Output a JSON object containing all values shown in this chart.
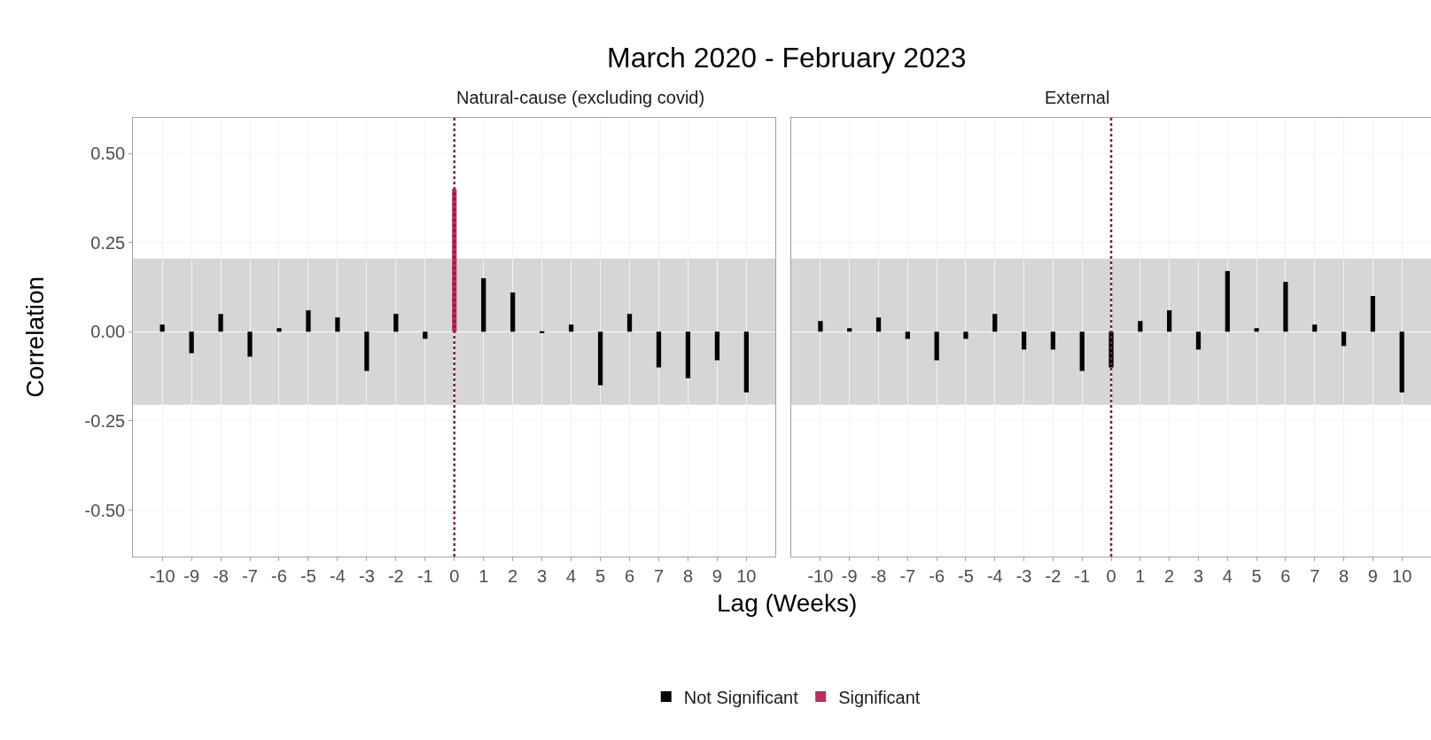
{
  "chart_data": [
    {
      "type": "bar",
      "title": "March 2020 - February 2023",
      "subtitle": "Natural-cause (excluding covid)",
      "xlabel": "Lag (Weeks)",
      "ylabel": "Correlation",
      "x": [
        -10,
        -9,
        -8,
        -7,
        -6,
        -5,
        -4,
        -3,
        -2,
        -1,
        0,
        1,
        2,
        3,
        4,
        5,
        6,
        7,
        8,
        9,
        10
      ],
      "series": [
        {
          "name": "Not Significant",
          "color": "#000000",
          "values": [
            0.02,
            -0.06,
            0.05,
            -0.07,
            0.01,
            0.06,
            0.04,
            -0.11,
            0.05,
            -0.02,
            null,
            0.15,
            0.11,
            -0.004,
            0.02,
            -0.15,
            0.05,
            -0.1,
            -0.13,
            -0.08,
            -0.17
          ]
        },
        {
          "name": "Significant",
          "color": "#b5305a",
          "values": [
            null,
            null,
            null,
            null,
            null,
            null,
            null,
            null,
            null,
            null,
            0.4,
            null,
            null,
            null,
            null,
            null,
            null,
            null,
            null,
            null,
            null
          ]
        }
      ],
      "xlim": [
        -11,
        11
      ],
      "xticks": [
        -10,
        -9,
        -8,
        -7,
        -6,
        -5,
        -4,
        -3,
        -2,
        -1,
        0,
        1,
        2,
        3,
        4,
        5,
        6,
        7,
        8,
        9,
        10
      ],
      "ylim": [
        -0.63,
        0.6
      ],
      "yticks": [
        {
          "value": -0.5,
          "label": "-0.50"
        },
        {
          "value": -0.25,
          "label": "-0.25"
        },
        {
          "value": 0,
          "label": "0.00"
        },
        {
          "value": 0.25,
          "label": "0.25"
        },
        {
          "value": 0.5,
          "label": "0.50"
        }
      ],
      "ref_lines": [
        {
          "axis": "x",
          "value": 0,
          "color": "#8b1a2b",
          "line_style": "dotted"
        }
      ],
      "bands": [
        {
          "axis": "y",
          "from": -0.205,
          "to": 0.205,
          "color": "#d6d6d6"
        }
      ],
      "grid": true,
      "legend": "bottom"
    },
    {
      "type": "bar",
      "subtitle": "External",
      "x": [
        -10,
        -9,
        -8,
        -7,
        -6,
        -5,
        -4,
        -3,
        -2,
        -1,
        0,
        1,
        2,
        3,
        4,
        5,
        6,
        7,
        8,
        9,
        10
      ],
      "series": [
        {
          "name": "Not Significant",
          "color": "#000000",
          "values": [
            0.03,
            0.01,
            0.04,
            -0.02,
            -0.08,
            -0.02,
            0.05,
            -0.05,
            -0.05,
            -0.11,
            -0.1,
            0.03,
            0.06,
            -0.05,
            0.17,
            0.01,
            0.14,
            0.02,
            -0.04,
            0.1,
            -0.17
          ]
        }
      ],
      "xlim": [
        -11,
        11
      ],
      "xticks": [
        -10,
        -9,
        -8,
        -7,
        -6,
        -5,
        -4,
        -3,
        -2,
        -1,
        0,
        1,
        2,
        3,
        4,
        5,
        6,
        7,
        8,
        9,
        10
      ],
      "ylim": [
        -0.63,
        0.6
      ],
      "yticks": [
        {
          "value": -0.5,
          "label": null
        },
        {
          "value": -0.25,
          "label": null
        },
        {
          "value": 0,
          "label": null
        },
        {
          "value": 0.25,
          "label": null
        },
        {
          "value": 0.5,
          "label": null
        }
      ],
      "ref_lines": [
        {
          "axis": "x",
          "value": 0,
          "color": "#8b1a2b",
          "line_style": "dotted"
        }
      ],
      "bands": [
        {
          "axis": "y",
          "from": -0.205,
          "to": 0.205,
          "color": "#d6d6d6"
        }
      ],
      "grid": true,
      "tick_labels": "x"
    }
  ]
}
